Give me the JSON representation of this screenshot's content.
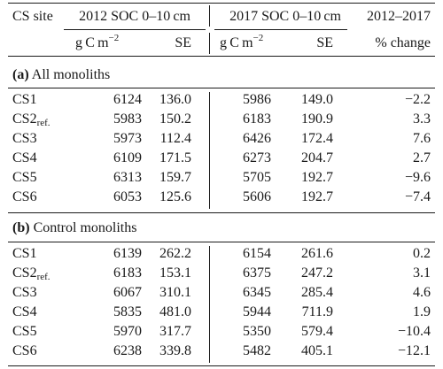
{
  "header": {
    "site": "CS site",
    "col2012": "2012 SOC 0–10 cm",
    "col2017": "2017 SOC 0–10 cm",
    "colChange": "2012–2017",
    "unit_prefix": "g C m",
    "unit_exp": "−2",
    "se": "SE",
    "pct": "% change"
  },
  "sections": [
    {
      "letter": "(a)",
      "title": "All monoliths",
      "rows": [
        {
          "site": "CS1",
          "sub": "",
          "soc2012": "6124",
          "se2012": "136.0",
          "soc2017": "5986",
          "se2017": "149.0",
          "change": "−2.2"
        },
        {
          "site": "CS2",
          "sub": "ref.",
          "soc2012": "5983",
          "se2012": "150.2",
          "soc2017": "6183",
          "se2017": "190.9",
          "change": "3.3"
        },
        {
          "site": "CS3",
          "sub": "",
          "soc2012": "5973",
          "se2012": "112.4",
          "soc2017": "6426",
          "se2017": "172.4",
          "change": "7.6"
        },
        {
          "site": "CS4",
          "sub": "",
          "soc2012": "6109",
          "se2012": "171.5",
          "soc2017": "6273",
          "se2017": "204.7",
          "change": "2.7"
        },
        {
          "site": "CS5",
          "sub": "",
          "soc2012": "6313",
          "se2012": "159.7",
          "soc2017": "5705",
          "se2017": "192.7",
          "change": "−9.6"
        },
        {
          "site": "CS6",
          "sub": "",
          "soc2012": "6053",
          "se2012": "125.6",
          "soc2017": "5606",
          "se2017": "192.7",
          "change": "−7.4"
        }
      ]
    },
    {
      "letter": "(b)",
      "title": "Control monoliths",
      "rows": [
        {
          "site": "CS1",
          "sub": "",
          "soc2012": "6139",
          "se2012": "262.2",
          "soc2017": "6154",
          "se2017": "261.6",
          "change": "0.2"
        },
        {
          "site": "CS2",
          "sub": "ref.",
          "soc2012": "6183",
          "se2012": "153.1",
          "soc2017": "6375",
          "se2017": "247.2",
          "change": "3.1"
        },
        {
          "site": "CS3",
          "sub": "",
          "soc2012": "6067",
          "se2012": "310.1",
          "soc2017": "6345",
          "se2017": "285.4",
          "change": "4.6"
        },
        {
          "site": "CS4",
          "sub": "",
          "soc2012": "5835",
          "se2012": "481.0",
          "soc2017": "5944",
          "se2017": "711.9",
          "change": "1.9"
        },
        {
          "site": "CS5",
          "sub": "",
          "soc2012": "5970",
          "se2012": "317.7",
          "soc2017": "5350",
          "se2017": "579.4",
          "change": "−10.4"
        },
        {
          "site": "CS6",
          "sub": "",
          "soc2012": "6238",
          "se2012": "339.8",
          "soc2017": "5482",
          "se2017": "405.1",
          "change": "−12.1"
        }
      ]
    }
  ]
}
